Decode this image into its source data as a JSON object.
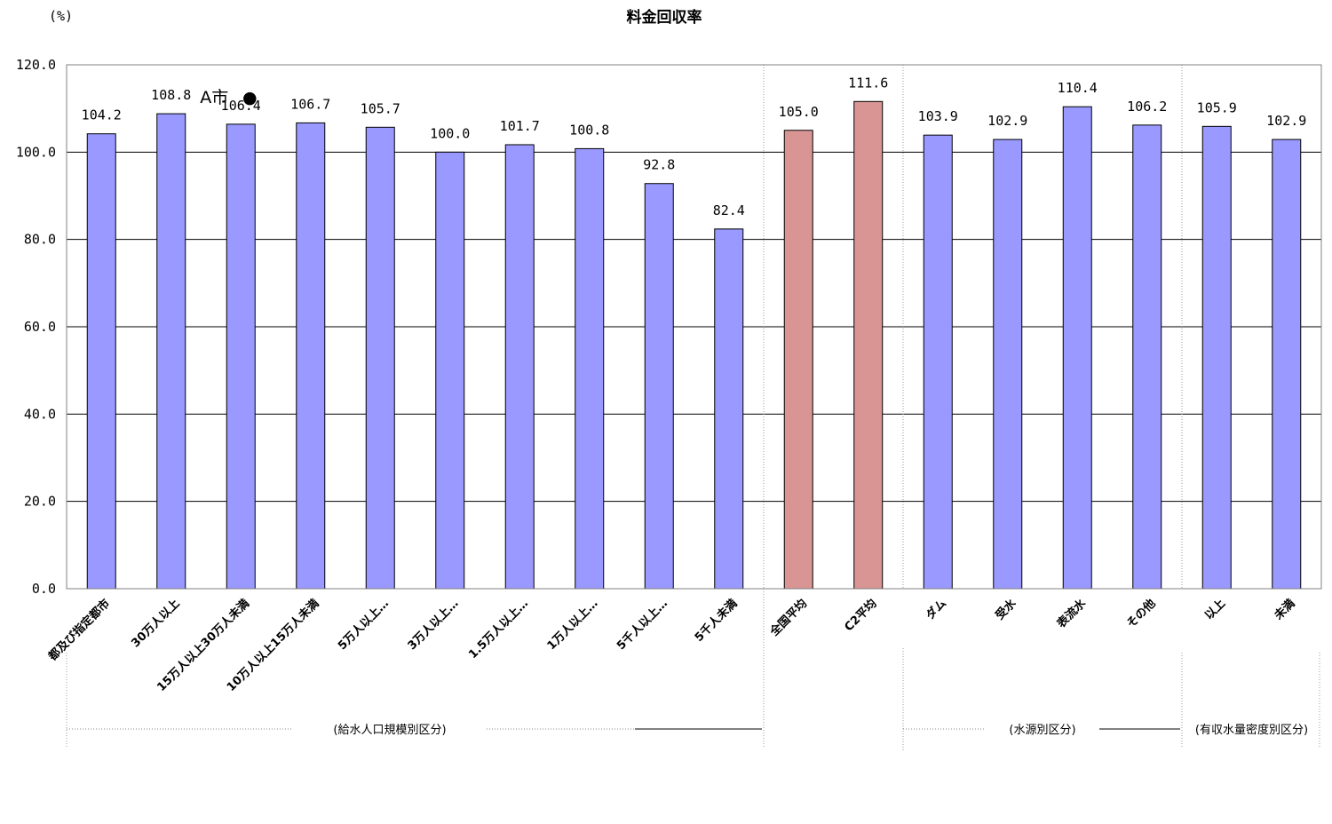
{
  "chart_data": {
    "type": "bar",
    "title": "料金回収率",
    "ylabel": "(%)",
    "ylim": [
      0,
      120
    ],
    "yticks": [
      "0.0",
      "20.0",
      "40.0",
      "60.0",
      "80.0",
      "100.0",
      "120.0"
    ],
    "grid": true,
    "categories": [
      "都及び指定都市",
      "30万人以上",
      "15万人以上30万人未満",
      "10万人以上15万人未満",
      "5万人以上…",
      "3万人以上…",
      "1.5万人以上…",
      "1万人以上…",
      "5千人以上…",
      "5千人未満",
      "全国平均",
      "C2平均",
      "ダム",
      "受水",
      "表流水",
      "その他",
      "以上",
      "未満"
    ],
    "values": [
      104.2,
      108.8,
      106.4,
      106.7,
      105.7,
      100.0,
      101.7,
      100.8,
      92.8,
      82.4,
      105.0,
      111.6,
      103.9,
      102.9,
      110.4,
      106.2,
      105.9,
      102.9
    ],
    "value_labels": [
      "104.2",
      "108.8",
      "106.4",
      "106.7",
      "105.7",
      "100.0",
      "101.7",
      "100.8",
      "92.8",
      "82.4",
      "105.0",
      "111.6",
      "103.9",
      "102.9",
      "110.4",
      "106.2",
      "105.9",
      "102.9"
    ],
    "colors": {
      "default": "#9999ff",
      "highlight": "#d99594",
      "highlight_categories": [
        "全国平均",
        "C2平均"
      ]
    },
    "groups": [
      {
        "label": "(給水人口規模別区分)",
        "categories": [
          "都及び指定都市",
          "30万人以上",
          "15万人以上30万人未満",
          "10万人以上15万人未満",
          "5万人以上…",
          "3万人以上…",
          "1.5万人以上…",
          "1万人以上…",
          "5千人以上…",
          "5千人未満"
        ]
      },
      {
        "label": "(水源別区分)",
        "categories": [
          "ダム",
          "受水",
          "表流水",
          "その他"
        ]
      },
      {
        "label": "(有収水量密度別区分)",
        "categories": [
          "以上",
          "未満"
        ]
      }
    ],
    "annotation": {
      "text": "A市",
      "marker": "●",
      "category": "15万人以上30万人未満"
    }
  }
}
